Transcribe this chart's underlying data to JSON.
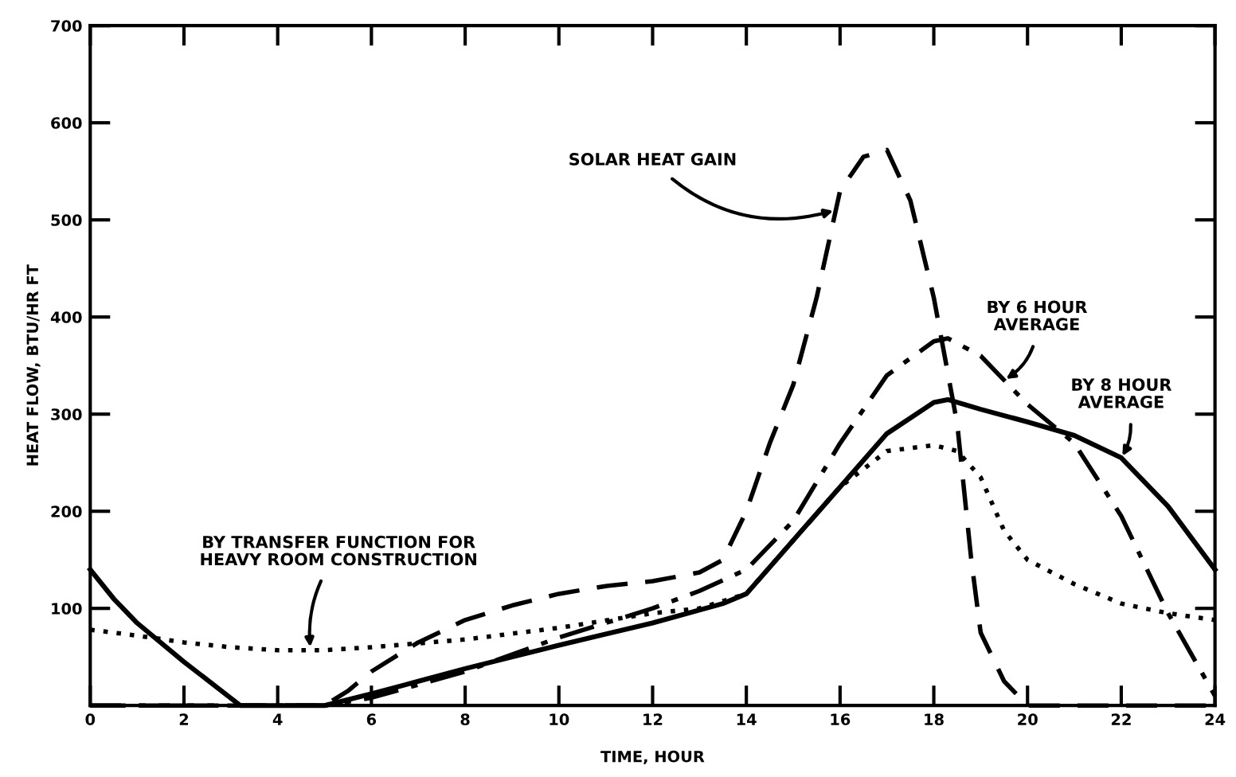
{
  "chart_data": {
    "type": "line",
    "xlabel": "TIME, HOUR",
    "ylabel": "HEAT FLOW, BTU/HR FT",
    "xlim": [
      0,
      24
    ],
    "ylim": [
      0,
      700
    ],
    "xticks": [
      0,
      2,
      4,
      6,
      8,
      10,
      12,
      14,
      16,
      18,
      20,
      22,
      24
    ],
    "yticks": [
      100,
      200,
      300,
      400,
      500,
      600,
      700
    ],
    "grid": false,
    "legend": false,
    "series": [
      {
        "color": "#000000",
        "line_style": "dashed",
        "x": [
          0,
          5,
          5.5,
          6,
          7,
          8,
          9,
          10,
          11,
          12,
          13,
          13.5,
          14,
          14.5,
          15,
          15.5,
          16,
          16.5,
          17,
          17.5,
          18,
          18.5,
          18.8,
          19,
          19.5,
          20,
          24
        ],
        "values": [
          0,
          0,
          15,
          35,
          65,
          88,
          103,
          115,
          123,
          128,
          137,
          150,
          200,
          270,
          330,
          420,
          530,
          565,
          572,
          520,
          420,
          290,
          150,
          75,
          25,
          0,
          0
        ]
      },
      {
        "color": "#000000",
        "line_style": "dashdot",
        "x": [
          0,
          5,
          6,
          8,
          10,
          12,
          13,
          14,
          15,
          16,
          17,
          18,
          18.3,
          19,
          20,
          21,
          22,
          23,
          24
        ],
        "values": [
          0,
          0,
          8,
          35,
          70,
          100,
          118,
          140,
          190,
          270,
          340,
          375,
          378,
          360,
          310,
          270,
          195,
          95,
          10
        ]
      },
      {
        "color": "#000000",
        "line_style": "solid",
        "x": [
          0,
          0.5,
          1,
          2,
          3.2,
          5,
          6,
          7,
          8,
          10,
          12,
          13.5,
          14,
          15,
          16,
          17,
          18,
          18.3,
          19,
          20,
          21,
          22,
          23,
          24
        ],
        "values": [
          140,
          110,
          85,
          45,
          0,
          0,
          12,
          25,
          38,
          62,
          85,
          105,
          115,
          170,
          225,
          280,
          312,
          315,
          305,
          292,
          278,
          255,
          205,
          140
        ]
      },
      {
        "color": "#000000",
        "line_style": "dotted",
        "x": [
          0,
          1,
          2,
          3,
          4,
          5,
          6,
          8,
          10,
          12,
          13,
          14,
          15,
          16,
          17,
          18,
          18.5,
          19,
          19.5,
          20,
          21,
          22,
          23,
          24
        ],
        "values": [
          78,
          72,
          65,
          60,
          57,
          57,
          60,
          68,
          80,
          95,
          100,
          115,
          170,
          225,
          262,
          268,
          262,
          235,
          180,
          150,
          125,
          105,
          95,
          88
        ]
      }
    ],
    "annotations": [
      {
        "text": "SOLAR HEAT GAIN",
        "x": 15.9,
        "y": 510
      },
      {
        "text": "BY 6 HOUR\nAVERAGE",
        "x": 19.5,
        "y": 335
      },
      {
        "text": "BY 8 HOUR\nAVERAGE",
        "x": 22.0,
        "y": 255
      },
      {
        "text": "BY TRANSFER FUNCTION FOR\nHEAVY ROOM CONSTRUCTION",
        "x": 4.7,
        "y": 58
      }
    ]
  }
}
